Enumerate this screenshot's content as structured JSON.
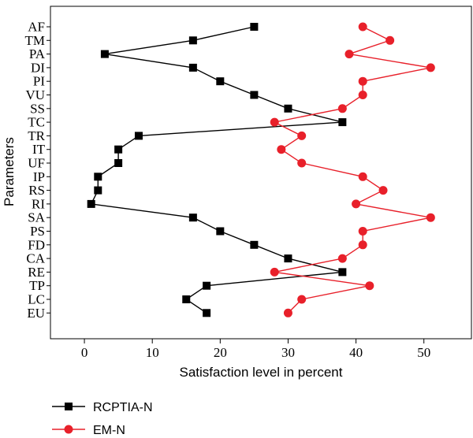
{
  "chart_data": {
    "type": "line",
    "xlabel": "Satisfaction level in percent",
    "ylabel": "Parameters",
    "xlim": [
      -5,
      57
    ],
    "xticks": [
      0,
      10,
      20,
      30,
      40,
      50
    ],
    "categories": [
      "AF",
      "TM",
      "PA",
      "DI",
      "PI",
      "VU",
      "SS",
      "TC",
      "TR",
      "IT",
      "UF",
      "IP",
      "RS",
      "RI",
      "SA",
      "PS",
      "FD",
      "CA",
      "RE",
      "TP",
      "LC",
      "EU"
    ],
    "series": [
      {
        "name": "RCPTIA-N",
        "color": "#000000",
        "marker": "square",
        "values": [
          25,
          16,
          3,
          16,
          20,
          25,
          30,
          38,
          8,
          5,
          5,
          2,
          2,
          1,
          16,
          20,
          25,
          30,
          38,
          18,
          15,
          18
        ]
      },
      {
        "name": "EM-N",
        "color": "#e8202a",
        "marker": "circle",
        "values": [
          41,
          45,
          39,
          51,
          41,
          41,
          38,
          28,
          32,
          29,
          32,
          41,
          44,
          40,
          51,
          41,
          41,
          38,
          28,
          42,
          32,
          30
        ]
      }
    ],
    "grid": false,
    "legend_position": "bottom-left"
  }
}
